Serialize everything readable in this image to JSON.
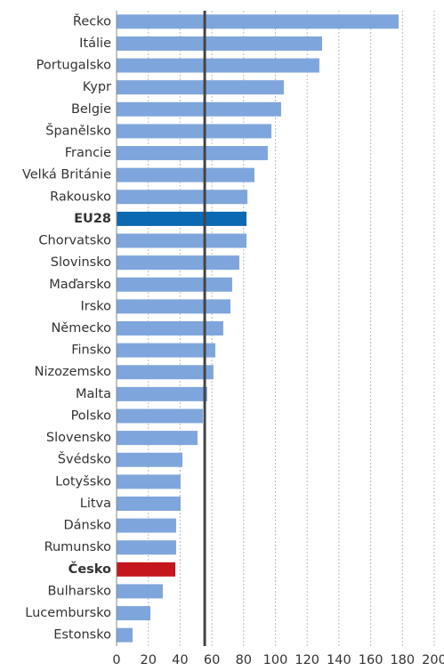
{
  "chart_data": {
    "type": "hbar",
    "categories": [
      "Řecko",
      "Itálie",
      "Portugalsko",
      "Kypr",
      "Belgie",
      "Španělsko",
      "Francie",
      "Velká Británie",
      "Rakousko",
      "EU28",
      "Chorvatsko",
      "Slovinsko",
      "Maďarsko",
      "Irsko",
      "Německo",
      "Finsko",
      "Nizozemsko",
      "Malta",
      "Polsko",
      "Slovensko",
      "Švédsko",
      "Lotyšsko",
      "Litva",
      "Dánsko",
      "Rumunsko",
      "Česko",
      "Bulharsko",
      "Lucembursko",
      "Estonsko"
    ],
    "values": [
      177.6,
      129.4,
      127.7,
      105.3,
      103.6,
      97.5,
      95.2,
      86.8,
      82.4,
      81.8,
      81.8,
      77.3,
      72.8,
      71.7,
      67.2,
      62.2,
      61,
      57.1,
      54.3,
      51,
      41.5,
      40.3,
      40.3,
      37.5,
      37.5,
      37,
      29.1,
      21.3,
      10.1
    ],
    "color": "#7fa6dc",
    "colors": [
      "#7fa6dc",
      "#7fa6dc",
      "#7fa6dc",
      "#7fa6dc",
      "#7fa6dc",
      "#7fa6dc",
      "#7fa6dc",
      "#7fa6dc",
      "#7fa6dc",
      "#0b68b2",
      "#7fa6dc",
      "#7fa6dc",
      "#7fa6dc",
      "#7fa6dc",
      "#7fa6dc",
      "#7fa6dc",
      "#7fa6dc",
      "#7fa6dc",
      "#7fa6dc",
      "#7fa6dc",
      "#7fa6dc",
      "#7fa6dc",
      "#7fa6dc",
      "#7fa6dc",
      "#7fa6dc",
      "#c4161c",
      "#7fa6dc",
      "#7fa6dc",
      "#7fa6dc"
    ],
    "xlim": [
      0,
      200
    ],
    "xticks": [
      0,
      20,
      40,
      60,
      80,
      100,
      120,
      140,
      160,
      180,
      200
    ],
    "grid": true,
    "reference_line": 55.5
  }
}
